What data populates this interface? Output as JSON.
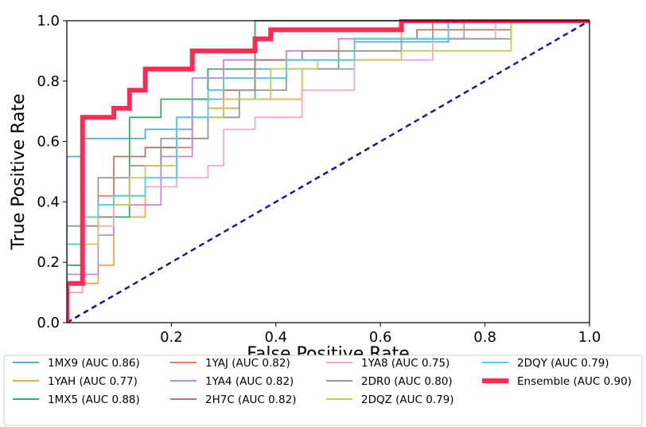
{
  "chart_data": {
    "type": "line",
    "title": "",
    "xlabel": "False Positive Rate",
    "ylabel": "True Positive Rate",
    "xlim": [
      0,
      1
    ],
    "ylim": [
      0,
      1
    ],
    "xticks": [
      "0.2",
      "0.4",
      "0.6",
      "0.8",
      "1.0"
    ],
    "yticks": [
      "0.0",
      "0.2",
      "0.4",
      "0.6",
      "0.8",
      "1.0"
    ],
    "xtick_values": [
      0.2,
      0.4,
      0.6,
      0.8,
      1.0
    ],
    "ytick_values": [
      0.0,
      0.2,
      0.4,
      0.6,
      0.8,
      1.0
    ],
    "grid": false,
    "legend_position": "below",
    "diagonal": {
      "x": [
        0,
        1
      ],
      "y": [
        0,
        1
      ],
      "color": "#1a1a8c",
      "style": "dashed"
    },
    "series": [
      {
        "name": "1MX9 (AUC 0.86)",
        "color": "#5aaad8",
        "x": [
          0,
          0,
          0.03,
          0.03,
          0.15,
          0.15,
          0.24,
          0.24,
          0.36,
          0.36,
          0.55,
          0.55,
          0.73,
          0.73,
          1.0
        ],
        "y": [
          0,
          0.55,
          0.55,
          0.61,
          0.61,
          0.64,
          0.64,
          0.74,
          0.74,
          0.84,
          0.84,
          0.93,
          0.93,
          1.0,
          1.0
        ]
      },
      {
        "name": "1YAH (AUC 0.77)",
        "color": "#f5a54a",
        "x": [
          0,
          0,
          0.06,
          0.06,
          0.09,
          0.09,
          0.15,
          0.15,
          0.21,
          0.21,
          0.27,
          0.27,
          0.33,
          0.33,
          0.45,
          0.45,
          0.52,
          0.52,
          0.64,
          0.64,
          1.0
        ],
        "y": [
          0,
          0.13,
          0.13,
          0.19,
          0.19,
          0.35,
          0.35,
          0.48,
          0.48,
          0.61,
          0.61,
          0.71,
          0.71,
          0.74,
          0.74,
          0.84,
          0.84,
          0.9,
          0.9,
          1.0,
          1.0
        ]
      },
      {
        "name": "1MX5 (AUC 0.88)",
        "color": "#3aa86a",
        "x": [
          0,
          0,
          0.03,
          0.03,
          0.12,
          0.12,
          0.18,
          0.18,
          0.27,
          0.27,
          0.36,
          0.36,
          1.0
        ],
        "y": [
          0,
          0.19,
          0.19,
          0.35,
          0.35,
          0.68,
          0.68,
          0.74,
          0.74,
          0.84,
          0.84,
          1.0,
          1.0
        ]
      },
      {
        "name": "1YAJ (AUC 0.82)",
        "color": "#ef7c6c",
        "x": [
          0,
          0,
          0.03,
          0.03,
          0.06,
          0.06,
          0.12,
          0.12,
          0.18,
          0.18,
          0.24,
          0.24,
          0.3,
          0.3,
          0.42,
          0.42,
          0.55,
          0.55,
          0.7,
          0.7,
          1.0
        ],
        "y": [
          0,
          0.1,
          0.1,
          0.32,
          0.32,
          0.42,
          0.42,
          0.52,
          0.52,
          0.58,
          0.58,
          0.68,
          0.68,
          0.81,
          0.81,
          0.87,
          0.87,
          0.94,
          0.94,
          1.0,
          1.0
        ]
      },
      {
        "name": "1YA4 (AUC 0.82)",
        "color": "#c08ad8",
        "x": [
          0,
          0,
          0.06,
          0.06,
          0.09,
          0.09,
          0.18,
          0.18,
          0.24,
          0.24,
          0.3,
          0.3,
          0.42,
          0.42,
          0.52,
          0.52,
          0.76,
          0.76,
          1.0
        ],
        "y": [
          0,
          0.16,
          0.16,
          0.29,
          0.29,
          0.39,
          0.39,
          0.55,
          0.55,
          0.81,
          0.81,
          0.87,
          0.87,
          0.9,
          0.9,
          0.94,
          0.94,
          1.0,
          1.0
        ]
      },
      {
        "name": "2H7C (AUC 0.82)",
        "color": "#b07a70",
        "x": [
          0,
          0,
          0.03,
          0.03,
          0.09,
          0.09,
          0.15,
          0.15,
          0.21,
          0.21,
          0.27,
          0.27,
          0.36,
          0.36,
          0.45,
          0.45,
          0.55,
          0.55,
          0.67,
          0.67,
          0.85,
          0.85,
          1.0
        ],
        "y": [
          0,
          0.26,
          0.26,
          0.35,
          0.35,
          0.55,
          0.55,
          0.58,
          0.58,
          0.68,
          0.68,
          0.77,
          0.77,
          0.87,
          0.87,
          0.9,
          0.9,
          0.94,
          0.94,
          0.97,
          0.97,
          1.0,
          1.0
        ]
      },
      {
        "name": "1YA8 (AUC 0.75)",
        "color": "#f7a8cc",
        "x": [
          0,
          0,
          0.03,
          0.03,
          0.09,
          0.09,
          0.15,
          0.15,
          0.21,
          0.21,
          0.27,
          0.27,
          0.3,
          0.3,
          0.36,
          0.36,
          0.45,
          0.45,
          0.55,
          0.55,
          0.7,
          0.7,
          0.82,
          0.82,
          1.0
        ],
        "y": [
          0,
          0.1,
          0.1,
          0.32,
          0.32,
          0.42,
          0.42,
          0.45,
          0.45,
          0.48,
          0.48,
          0.52,
          0.52,
          0.64,
          0.64,
          0.68,
          0.68,
          0.77,
          0.77,
          0.87,
          0.87,
          0.94,
          0.94,
          1.0,
          1.0
        ]
      },
      {
        "name": "2DR0 (AUC 0.80)",
        "color": "#9a9a9a",
        "x": [
          0,
          0,
          0.06,
          0.06,
          0.12,
          0.12,
          0.18,
          0.18,
          0.27,
          0.27,
          0.33,
          0.33,
          0.42,
          0.42,
          0.52,
          0.52,
          0.64,
          0.64,
          0.85,
          0.85,
          1.0
        ],
        "y": [
          0,
          0.32,
          0.32,
          0.48,
          0.48,
          0.52,
          0.52,
          0.61,
          0.61,
          0.68,
          0.68,
          0.77,
          0.77,
          0.84,
          0.84,
          0.9,
          0.9,
          0.94,
          0.94,
          1.0,
          1.0
        ]
      },
      {
        "name": "2DQZ (AUC 0.79)",
        "color": "#c8c860",
        "x": [
          0,
          0,
          0.06,
          0.06,
          0.12,
          0.12,
          0.15,
          0.15,
          0.21,
          0.21,
          0.3,
          0.3,
          0.39,
          0.39,
          0.48,
          0.48,
          0.64,
          0.64,
          0.85,
          0.85
        ],
        "y": [
          0,
          0.26,
          0.26,
          0.39,
          0.39,
          0.48,
          0.48,
          0.52,
          0.52,
          0.68,
          0.68,
          0.74,
          0.74,
          0.84,
          0.84,
          0.87,
          0.87,
          0.9,
          0.9,
          1.0
        ]
      },
      {
        "name": "2DQY (AUC 0.79)",
        "color": "#4fd0e8",
        "x": [
          0,
          0,
          0.03,
          0.03,
          0.06,
          0.06,
          0.09,
          0.09,
          0.15,
          0.15,
          0.21,
          0.21,
          0.27,
          0.27,
          0.3,
          0.3,
          0.42,
          0.42,
          0.55,
          0.55,
          0.73,
          0.73,
          1.0
        ],
        "y": [
          0,
          0.26,
          0.26,
          0.35,
          0.35,
          0.39,
          0.39,
          0.42,
          0.42,
          0.48,
          0.48,
          0.68,
          0.68,
          0.77,
          0.77,
          0.81,
          0.81,
          0.87,
          0.87,
          0.94,
          0.94,
          1.0,
          1.0
        ]
      },
      {
        "name": "Ensemble (AUC 0.90)",
        "color": "#ff2a55",
        "bold": true,
        "x": [
          0,
          0,
          0.03,
          0.03,
          0.09,
          0.09,
          0.12,
          0.12,
          0.15,
          0.15,
          0.24,
          0.24,
          0.36,
          0.36,
          0.39,
          0.39,
          0.64,
          0.64,
          1.0
        ],
        "y": [
          0,
          0.13,
          0.13,
          0.68,
          0.68,
          0.71,
          0.71,
          0.77,
          0.77,
          0.84,
          0.84,
          0.9,
          0.9,
          0.94,
          0.94,
          0.97,
          0.97,
          1.0,
          1.0
        ]
      }
    ]
  }
}
